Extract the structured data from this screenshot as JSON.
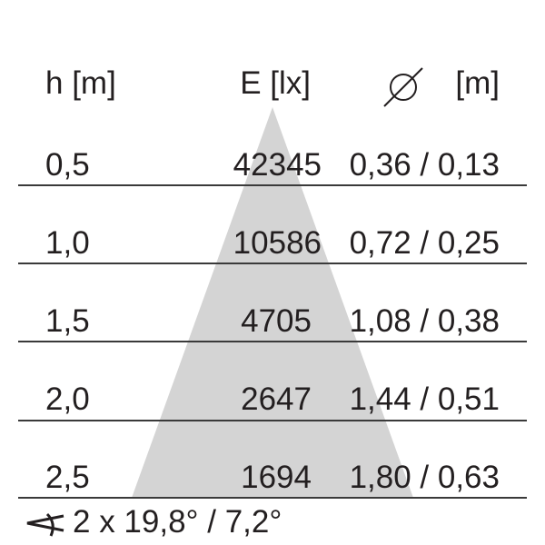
{
  "header": {
    "height_label": "h [m]",
    "illuminance_label": "E [lx]",
    "diameter_unit": "[m]",
    "diameter_icon": "diameter-icon"
  },
  "rows": [
    {
      "h": "0,5",
      "E": "42345",
      "d": "0,36 / 0,13"
    },
    {
      "h": "1,0",
      "E": "10586",
      "d": "0,72 / 0,25"
    },
    {
      "h": "1,5",
      "E": "4705",
      "d": "1,08 / 0,38"
    },
    {
      "h": "2,0",
      "E": "2647",
      "d": "1,44 / 0,51"
    },
    {
      "h": "2,5",
      "E": "1694",
      "d": "1,80 / 0,63"
    }
  ],
  "footer": {
    "angle_icon": "beam-angle-icon",
    "beam_angle": "2 x 19,8° / 7,2°"
  },
  "colors": {
    "cone": "#d4d4d4",
    "text": "#231f20",
    "lines": "#3a3a3a"
  }
}
